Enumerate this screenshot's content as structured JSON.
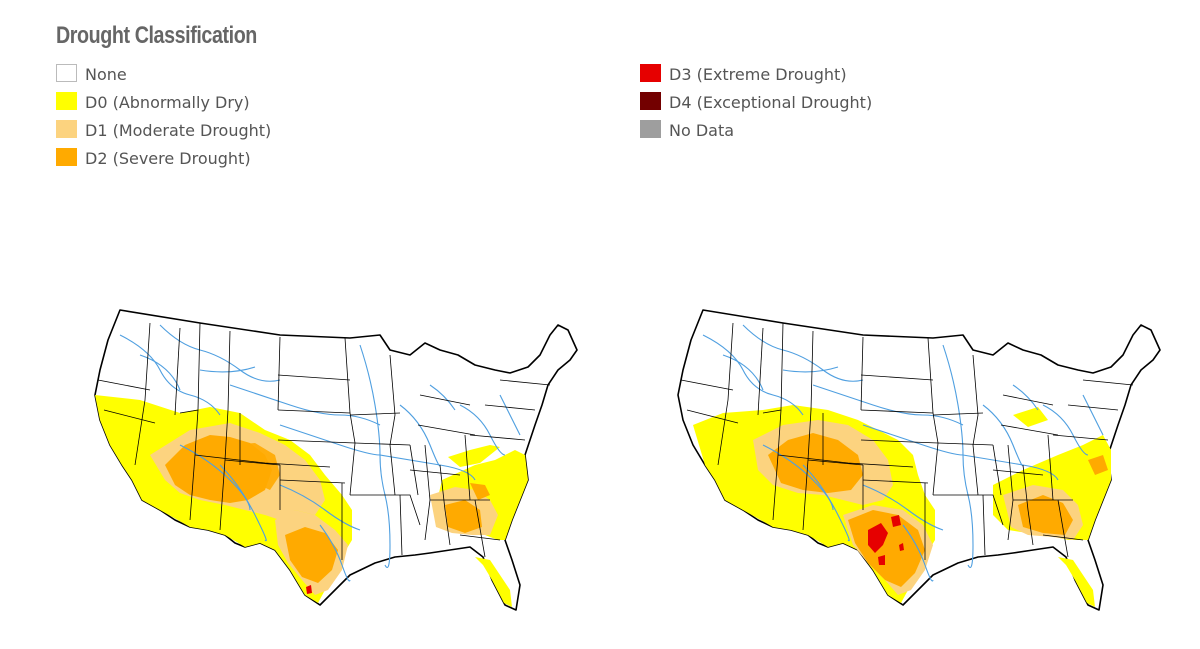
{
  "legend": {
    "title": "Drought Classification",
    "items": [
      {
        "label": "None",
        "color": "#ffffff"
      },
      {
        "label": "D0 (Abnormally Dry)",
        "color": "#ffff00"
      },
      {
        "label": "D1 (Moderate Drought)",
        "color": "#fcd37f"
      },
      {
        "label": "D2 (Severe Drought)",
        "color": "#ffaa00"
      },
      {
        "label": "D3 (Extreme Drought)",
        "color": "#e60000"
      },
      {
        "label": "D4 (Exceptional Drought)",
        "color": "#730000"
      },
      {
        "label": "No Data",
        "color": "#9e9e9e"
      }
    ]
  },
  "maps": [
    {
      "id": "left-map",
      "icon": "us-drought-map"
    },
    {
      "id": "right-map",
      "icon": "us-drought-map"
    }
  ],
  "colors": {
    "river": "#4f9fe0",
    "border": "#000000",
    "d0": "#ffff00",
    "d1": "#fcd37f",
    "d2": "#ffaa00",
    "d3": "#e60000"
  }
}
